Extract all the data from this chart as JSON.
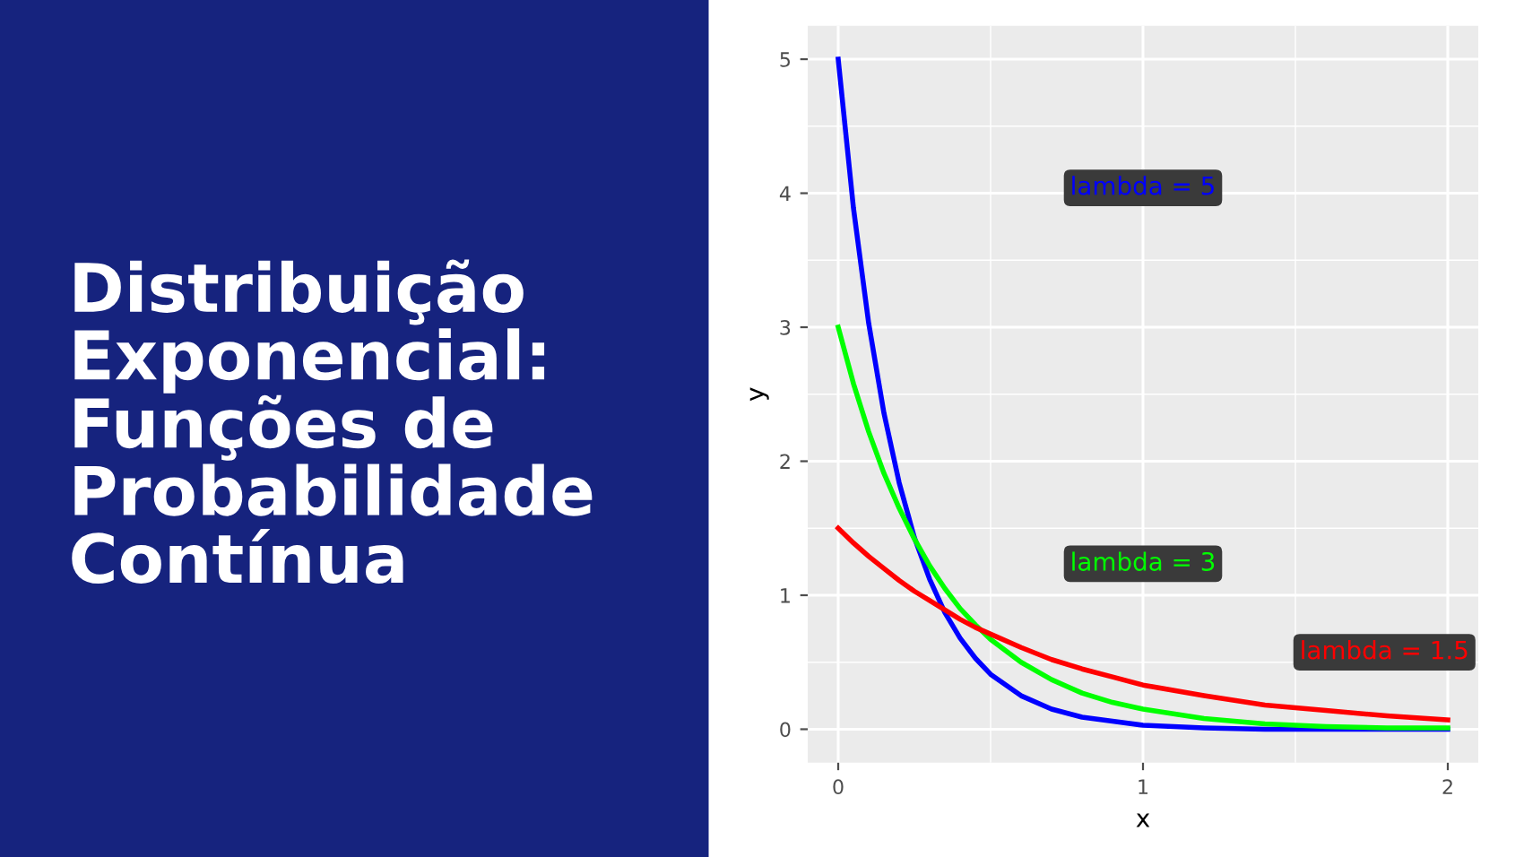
{
  "chart_data": {
    "type": "line",
    "title": "Distribuição\nExponencial:\nFunções de\nProbabilidade\nContínua",
    "xlabel": "x",
    "ylabel": "y",
    "x": [
      0,
      0.05,
      0.1,
      0.15,
      0.2,
      0.25,
      0.3,
      0.35,
      0.4,
      0.45,
      0.5,
      0.6,
      0.7,
      0.8,
      0.9,
      1.0,
      1.2,
      1.4,
      1.6,
      1.8,
      2.0
    ],
    "series": [
      {
        "name": "lambda = 5",
        "color": "#0000ff",
        "values": [
          5,
          3.89,
          3.03,
          2.36,
          1.84,
          1.43,
          1.12,
          0.87,
          0.68,
          0.53,
          0.41,
          0.25,
          0.15,
          0.09,
          0.06,
          0.03,
          0.01,
          0.0,
          0.0,
          0.0,
          0.0
        ]
      },
      {
        "name": "lambda = 3",
        "color": "#00ff00",
        "values": [
          3,
          2.58,
          2.22,
          1.91,
          1.65,
          1.42,
          1.22,
          1.05,
          0.9,
          0.78,
          0.67,
          0.5,
          0.37,
          0.27,
          0.2,
          0.15,
          0.08,
          0.04,
          0.02,
          0.01,
          0.01
        ]
      },
      {
        "name": "lambda = 1.5",
        "color": "#ff0000",
        "values": [
          1.5,
          1.39,
          1.29,
          1.2,
          1.11,
          1.03,
          0.96,
          0.89,
          0.82,
          0.76,
          0.71,
          0.61,
          0.52,
          0.45,
          0.39,
          0.33,
          0.25,
          0.18,
          0.14,
          0.1,
          0.07
        ]
      }
    ],
    "xlim": [
      -0.1,
      2.1
    ],
    "ylim": [
      -0.25,
      5.25
    ],
    "xticks": [
      0,
      1,
      2
    ],
    "yticks": [
      0,
      1,
      2,
      3,
      4,
      5
    ],
    "grid": true,
    "marker": "none",
    "line_style": "solid"
  }
}
